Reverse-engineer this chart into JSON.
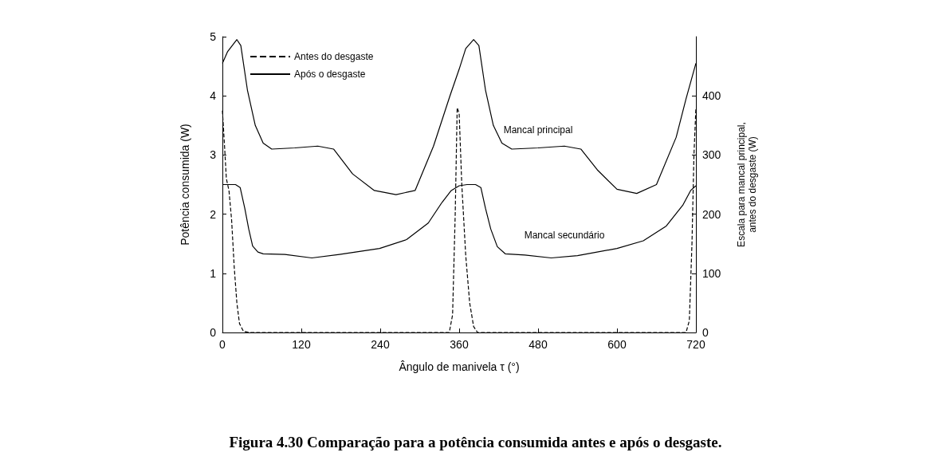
{
  "chart_data": {
    "type": "line",
    "xlabel": "Ângulo de manivela τ (°)",
    "ylabel": "Potência consumida (W)",
    "y2label": "Escala para mancal principal,\nantes do desgaste (W)",
    "xlim": [
      0,
      720
    ],
    "xticks": [
      0,
      120,
      240,
      360,
      480,
      600,
      720
    ],
    "ylim": [
      0,
      5
    ],
    "yticks": [
      0,
      1,
      2,
      3,
      4,
      5
    ],
    "y2lim": [
      0,
      500
    ],
    "y2ticks": [
      0,
      100,
      200,
      300,
      400
    ],
    "grid": false,
    "legend": "top left",
    "marker": "none",
    "series": [
      {
        "name": "Antes do desgaste",
        "color": "#000000",
        "axis": "y2",
        "line_style": "dashed",
        "x": [
          0,
          3,
          6,
          10,
          14,
          18,
          22,
          26,
          32,
          40,
          345,
          350,
          354,
          357,
          360,
          364,
          370,
          376,
          382,
          388,
          705,
          710,
          714,
          717,
          720
        ],
        "values": [
          375,
          320,
          260,
          240,
          190,
          110,
          50,
          15,
          2,
          0,
          0,
          30,
          200,
          380,
          370,
          250,
          130,
          50,
          10,
          0,
          0,
          20,
          150,
          300,
          380
        ]
      },
      {
        "name": "Após o desgaste",
        "color": "#000000",
        "line_style": "solid",
        "x": [
          0,
          8,
          15,
          22,
          28,
          38,
          50,
          62,
          75,
          110,
          145,
          169,
          198,
          231,
          264,
          293,
          321,
          346,
          360,
          370,
          382,
          390,
          400,
          412,
          425,
          440,
          480,
          520,
          545,
          570,
          600,
          630,
          660,
          690,
          705,
          720
        ],
        "values": [
          4.55,
          4.75,
          4.85,
          4.95,
          4.85,
          4.1,
          3.5,
          3.2,
          3.1,
          3.12,
          3.15,
          3.1,
          2.68,
          2.4,
          2.33,
          2.4,
          3.15,
          4.0,
          4.45,
          4.8,
          4.95,
          4.85,
          4.1,
          3.5,
          3.2,
          3.1,
          3.12,
          3.15,
          3.1,
          2.75,
          2.42,
          2.35,
          2.5,
          3.3,
          3.95,
          4.55
        ]
      },
      {
        "color": "#000000",
        "line_style": "solid",
        "x": [
          0,
          10,
          20,
          27,
          34,
          40,
          46,
          54,
          62,
          95,
          136,
          178,
          239,
          280,
          313,
          334,
          348,
          360,
          372,
          385,
          393,
          400,
          408,
          418,
          430,
          460,
          500,
          540,
          600,
          640,
          675,
          700,
          712,
          720
        ],
        "values": [
          2.5,
          2.5,
          2.5,
          2.45,
          2.1,
          1.75,
          1.46,
          1.36,
          1.33,
          1.32,
          1.26,
          1.32,
          1.42,
          1.57,
          1.85,
          2.2,
          2.4,
          2.48,
          2.5,
          2.5,
          2.45,
          2.1,
          1.75,
          1.45,
          1.33,
          1.31,
          1.26,
          1.3,
          1.42,
          1.55,
          1.8,
          2.15,
          2.4,
          2.48
        ]
      }
    ],
    "annotations": [
      "Mancal principal",
      "Mancal secundário",
      "Figura 4.30 Comparação para a potência consumida antes e após o desgaste."
    ]
  }
}
